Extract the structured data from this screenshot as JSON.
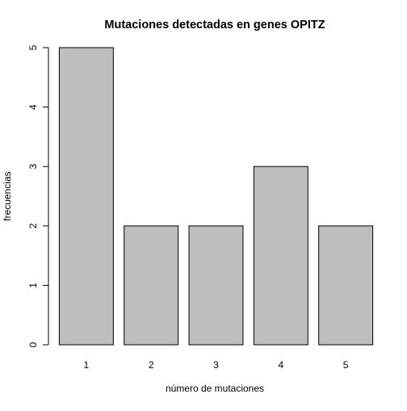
{
  "chart_data": {
    "type": "bar",
    "title": "Mutaciones detectadas en genes OPITZ",
    "xlabel": "número de mutaciones",
    "ylabel": "frecuencias",
    "categories": [
      "1",
      "2",
      "3",
      "4",
      "5"
    ],
    "values": [
      5,
      2,
      2,
      3,
      2
    ],
    "ylim": [
      0,
      5
    ],
    "yticks": [
      "0",
      "1",
      "2",
      "3",
      "4",
      "5"
    ],
    "grid": false,
    "legend": "none",
    "colors": {
      "bar_fill": "#bebebe",
      "bar_stroke": "#000000",
      "axis": "#000000"
    }
  }
}
